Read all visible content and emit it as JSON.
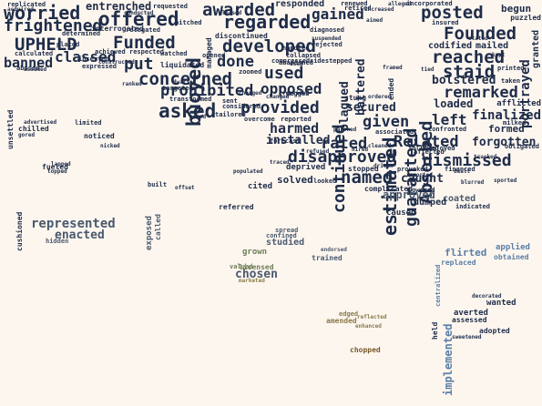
{
  "colors": {
    "background": "#fdf6ef",
    "dark": "#1f2d4a",
    "slate": "#4a5a6e",
    "blue": "#5b7fa6",
    "green": "#6e7f5a",
    "olive": "#8a7a4a",
    "brown": "#7a5a2a"
  },
  "words": [
    "worried",
    "offered",
    "awarded",
    "regarded",
    "gained",
    "posted",
    "frightened",
    "banned",
    "UPHELD",
    "Funded",
    "classed",
    "put",
    "developed",
    "done",
    "buoyed",
    "concerned",
    "used",
    "prohibited",
    "asked",
    "provided",
    "opposed",
    "harmed",
    "installed",
    "continued",
    "estimated",
    "guaranteed",
    "Absorbed",
    "Founded",
    "reached",
    "staid",
    "remarked",
    "given",
    "rated",
    "Related",
    "disapproved",
    "dismissed",
    "named",
    "caught",
    "approved",
    "coated",
    "represented",
    "enacted",
    "chosen",
    "studied",
    "grown",
    "flirted",
    "applied",
    "adopted",
    "implemented",
    "left",
    "finalized",
    "forgotten",
    "formed",
    "secured",
    "loaded",
    "bolstered",
    "portrayed",
    "begun",
    "entrenched",
    "responded",
    "renewed",
    "incorporated",
    "requested",
    "replicated",
    "interrogated",
    "determined",
    "achieved",
    "liquidated",
    "discontinued",
    "managed",
    "collapsed",
    "plagued",
    "battered",
    "stung",
    "pegged",
    "transformed",
    "tailored",
    "considered",
    "sent",
    "overcome",
    "reported",
    "compressed",
    "repriced",
    "abandoned",
    "mailed",
    "codified",
    "puzzled",
    "granted",
    "printed",
    "taken",
    "milked",
    "obligated",
    "enjoyed",
    "financed",
    "stopped",
    "provoked",
    "complicated",
    "followed",
    "confronted",
    "forecast",
    "solved",
    "deprived",
    "refused",
    "looked",
    "chilled",
    "noticed",
    "advertised",
    "limited",
    "fueled",
    "topped",
    "cushioned",
    "exposed",
    "called",
    "built",
    "referred",
    "cited",
    "hidden",
    "valued",
    "licensed",
    "marketed",
    "spread",
    "confined",
    "trained",
    "endorsed",
    "edged",
    "amended",
    "enhanced",
    "reflected",
    "chopped",
    "decorated",
    "wanted",
    "averted",
    "assessed",
    "caused",
    "dumped",
    "lowered",
    "indicated",
    "centralized",
    "replaced",
    "obtained",
    "held",
    "sweetened",
    "afflicted",
    "associated",
    "affected",
    "ended",
    "unsettled",
    "gored",
    "nicked",
    "acquired",
    "abused",
    "placed",
    "relegated",
    "pitched",
    "watched",
    "opened",
    "targeted",
    "dwarfed",
    "rejected",
    "sidestepped",
    "alleged",
    "insured",
    "aimed",
    "diagnosed",
    "retired",
    "increased",
    "calculated",
    "assumed",
    "expressed",
    "constructed",
    "respected",
    "inserted",
    "conducted",
    "handled",
    "zoomed",
    "changed",
    "populated",
    "tracked",
    "imported",
    "pleased",
    "traced",
    "cleaned",
    "blurred",
    "ordered",
    "suspended",
    "charged",
    "posed",
    "framed",
    "offset",
    "lapped",
    "tied",
    "used",
    "stated",
    "parched",
    "hired",
    "ranked",
    "sported",
    "dealt",
    "driven",
    "kept"
  ]
}
